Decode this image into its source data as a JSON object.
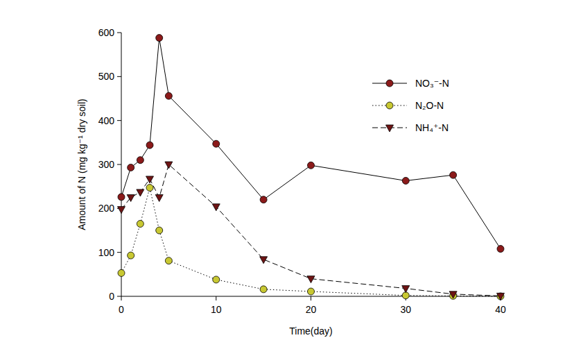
{
  "chart_data": {
    "type": "line",
    "x_label": "Time(day)",
    "y_label": "Amount of N (mg kg⁻¹ dry soil)",
    "x": [
      0,
      1,
      2,
      3,
      4,
      5,
      10,
      15,
      20,
      30,
      35,
      40
    ],
    "xlim": [
      0,
      40
    ],
    "xticks": [
      0,
      10,
      20,
      30,
      40
    ],
    "ylim": [
      0,
      600
    ],
    "yticks": [
      0,
      100,
      200,
      300,
      400,
      500,
      600
    ],
    "grid": false,
    "legend": "upper right",
    "series": [
      {
        "name": "NO₃⁻-N",
        "color": "#8b1a1a",
        "marker": "circle",
        "line_style": "solid",
        "values": [
          226,
          293,
          310,
          344,
          588,
          456,
          347,
          220,
          298,
          263,
          276,
          108
        ]
      },
      {
        "name": "N₂O-N",
        "color": "#c8c832",
        "marker": "circle",
        "line_style": "dotted",
        "values": [
          53,
          93,
          165,
          247,
          150,
          81,
          38,
          16,
          11,
          2,
          1,
          0
        ]
      },
      {
        "name": "NH₄⁺-N",
        "color": "#6e1414",
        "marker": "triangle-down",
        "line_style": "dashed",
        "values": [
          198,
          225,
          237,
          267,
          225,
          300,
          204,
          84,
          40,
          18,
          5,
          1
        ]
      }
    ]
  }
}
